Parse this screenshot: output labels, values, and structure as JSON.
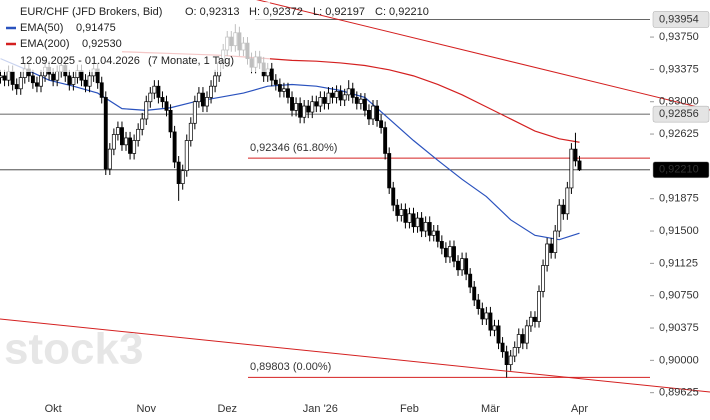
{
  "chart_data": {
    "type": "candlestick",
    "header": {
      "title": "EUR/CHF (JFD Brokers, Bid)",
      "ohlc": [
        "O: 0,92313",
        "H: 0,92372",
        "L: 0,92197",
        "C: 0,92210"
      ],
      "range": "12.09.2025 - 01.04.2026",
      "duration": "(7 Monate, 1 Tag)"
    },
    "watermark": "stock3",
    "categories": [
      null,
      null,
      null,
      null,
      null,
      null,
      null,
      null,
      null,
      null,
      null,
      null,
      null,
      "Okt",
      null,
      null,
      null,
      null,
      null,
      null,
      null,
      null,
      null,
      null,
      null,
      null,
      null,
      null,
      null,
      null,
      null,
      null,
      null,
      null,
      null,
      null,
      "Nov",
      null,
      null,
      null,
      null,
      null,
      null,
      null,
      null,
      null,
      null,
      null,
      null,
      null,
      null,
      null,
      null,
      null,
      null,
      null,
      "Dez",
      null,
      null,
      null,
      null,
      null,
      null,
      null,
      null,
      null,
      null,
      null,
      null,
      null,
      null,
      null,
      null,
      null,
      null,
      null,
      null,
      null,
      null,
      "Jan '26",
      null,
      null,
      null,
      null,
      null,
      null,
      null,
      null,
      null,
      null,
      null,
      null,
      null,
      null,
      null,
      null,
      null,
      null,
      null,
      null,
      null,
      "Feb",
      null,
      null,
      null,
      null,
      null,
      null,
      null,
      null,
      null,
      null,
      null,
      null,
      null,
      null,
      null,
      null,
      null,
      null,
      null,
      "Mär",
      null,
      null,
      null,
      null,
      null,
      null,
      null,
      null,
      null,
      null,
      null,
      null,
      null,
      null,
      null,
      null,
      null,
      null,
      null,
      null,
      null,
      "Apr"
    ],
    "open": [
      0.9328,
      0.933,
      0.9325,
      0.9335,
      0.932,
      0.9315,
      0.9328,
      0.9338,
      0.933,
      0.9322,
      0.9318,
      0.933,
      0.934,
      0.9332,
      0.9325,
      0.9335,
      0.9342,
      0.933,
      0.932,
      0.9328,
      0.9336,
      0.9325,
      0.9318,
      0.933,
      0.9338,
      0.9322,
      0.9305,
      0.9222,
      0.9245,
      0.9262,
      0.927,
      0.925,
      0.9258,
      0.924,
      0.9255,
      0.9268,
      0.928,
      0.93,
      0.931,
      0.9318,
      0.9305,
      0.93,
      0.929,
      0.9265,
      0.923,
      0.9205,
      0.922,
      0.9255,
      0.9275,
      0.93,
      0.931,
      0.9295,
      0.9305,
      0.9318,
      0.933,
      0.9345,
      0.936,
      0.9375,
      0.9365,
      0.938,
      0.936,
      0.9368,
      0.935,
      0.934,
      0.9352,
      0.9345,
      0.933,
      0.9338,
      0.9325,
      0.932,
      0.9312,
      0.9315,
      0.9305,
      0.929,
      0.9298,
      0.9282,
      0.9295,
      0.9288,
      0.93,
      0.9295,
      0.9305,
      0.9298,
      0.931,
      0.9305,
      0.9312,
      0.9302,
      0.9308,
      0.9315,
      0.9305,
      0.9298,
      0.9303,
      0.929,
      0.928,
      0.9295,
      0.9278,
      0.927,
      0.924,
      0.92,
      0.918,
      0.9168,
      0.9175,
      0.916,
      0.917,
      0.9155,
      0.9165,
      0.915,
      0.916,
      0.9145,
      0.915,
      0.9138,
      0.913,
      0.912,
      0.9132,
      0.9115,
      0.9105,
      0.9118,
      0.91,
      0.9085,
      0.907,
      0.906,
      0.9048,
      0.9055,
      0.9035,
      0.904,
      0.902,
      0.901,
      0.8995,
      0.9005,
      0.9015,
      0.903,
      0.902,
      0.904,
      0.905,
      0.9045,
      0.908,
      0.911,
      0.9135,
      0.9125,
      0.915,
      0.918,
      0.917,
      0.92,
      0.9245,
      0.92313
    ],
    "high": [
      0.9337,
      0.9337,
      0.9342,
      0.9342,
      0.9327,
      0.9335,
      0.9345,
      0.9345,
      0.9337,
      0.9329,
      0.9337,
      0.9347,
      0.9347,
      0.9339,
      0.9342,
      0.9349,
      0.9349,
      0.9337,
      0.9335,
      0.9343,
      0.9343,
      0.9332,
      0.9337,
      0.9345,
      0.9345,
      0.9329,
      0.9312,
      0.9252,
      0.9269,
      0.9277,
      0.9277,
      0.9265,
      0.9265,
      0.9262,
      0.9275,
      0.9287,
      0.9307,
      0.9317,
      0.9325,
      0.9325,
      0.9312,
      0.9307,
      0.9297,
      0.9272,
      0.9237,
      0.9227,
      0.9262,
      0.9282,
      0.9307,
      0.9317,
      0.9317,
      0.9312,
      0.9325,
      0.9337,
      0.9352,
      0.9367,
      0.9382,
      0.9382,
      0.939,
      0.9387,
      0.9375,
      0.9375,
      0.9357,
      0.9359,
      0.9359,
      0.9352,
      0.9345,
      0.9345,
      0.9332,
      0.9327,
      0.9322,
      0.9322,
      0.9312,
      0.9305,
      0.9305,
      0.9302,
      0.9302,
      0.9307,
      0.9307,
      0.9312,
      0.9312,
      0.9317,
      0.9317,
      0.9319,
      0.9319,
      0.9315,
      0.9325,
      0.9322,
      0.9312,
      0.931,
      0.931,
      0.9297,
      0.9302,
      0.9302,
      0.9285,
      0.9277,
      0.9247,
      0.9207,
      0.9187,
      0.9182,
      0.9182,
      0.9177,
      0.9177,
      0.9172,
      0.9172,
      0.9167,
      0.9167,
      0.9157,
      0.9157,
      0.9145,
      0.9137,
      0.9139,
      0.9139,
      0.9122,
      0.9125,
      0.9125,
      0.9107,
      0.9092,
      0.9077,
      0.9067,
      0.9062,
      0.9062,
      0.9047,
      0.9047,
      0.9027,
      0.9017,
      0.9012,
      0.9022,
      0.9037,
      0.9037,
      0.9047,
      0.9057,
      0.9057,
      0.9087,
      0.9117,
      0.9142,
      0.9142,
      0.9157,
      0.9187,
      0.9187,
      0.9207,
      0.9252,
      0.9264,
      0.92372
    ],
    "low": [
      0.9321,
      0.9318,
      0.9318,
      0.9313,
      0.9308,
      0.9308,
      0.9321,
      0.9323,
      0.9315,
      0.9311,
      0.9311,
      0.9323,
      0.9325,
      0.9318,
      0.9318,
      0.9328,
      0.9323,
      0.9313,
      0.9313,
      0.9321,
      0.9318,
      0.9311,
      0.9311,
      0.9323,
      0.9315,
      0.9298,
      0.9215,
      0.9215,
      0.9238,
      0.9255,
      0.9243,
      0.9243,
      0.9233,
      0.9233,
      0.9248,
      0.9261,
      0.9273,
      0.9293,
      0.9303,
      0.9298,
      0.9293,
      0.9283,
      0.9258,
      0.9223,
      0.9185,
      0.9198,
      0.9213,
      0.9248,
      0.9268,
      0.9293,
      0.9288,
      0.9288,
      0.9298,
      0.9311,
      0.9323,
      0.9338,
      0.9353,
      0.9358,
      0.9358,
      0.9353,
      0.9353,
      0.9343,
      0.9333,
      0.9333,
      0.9338,
      0.9323,
      0.9323,
      0.9318,
      0.9313,
      0.9305,
      0.9305,
      0.9298,
      0.9283,
      0.9283,
      0.9275,
      0.9275,
      0.9281,
      0.9281,
      0.9288,
      0.9288,
      0.9291,
      0.9291,
      0.9298,
      0.9298,
      0.9295,
      0.9295,
      0.9301,
      0.9298,
      0.9291,
      0.9291,
      0.9283,
      0.9273,
      0.9273,
      0.9271,
      0.9263,
      0.9233,
      0.9193,
      0.9173,
      0.9161,
      0.9161,
      0.9153,
      0.9153,
      0.9148,
      0.9148,
      0.9143,
      0.9143,
      0.9138,
      0.9138,
      0.9131,
      0.9123,
      0.9113,
      0.9113,
      0.9108,
      0.9098,
      0.9098,
      0.9093,
      0.9078,
      0.9063,
      0.9053,
      0.9041,
      0.9041,
      0.9028,
      0.9028,
      0.9013,
      0.9003,
      0.898,
      0.8988,
      0.8998,
      0.9008,
      0.9013,
      0.9013,
      0.9033,
      0.9038,
      0.9038,
      0.9073,
      0.9103,
      0.9118,
      0.9118,
      0.9143,
      0.9163,
      0.9163,
      0.9193,
      0.9225,
      0.92197
    ],
    "close": [
      0.933,
      0.9325,
      0.9335,
      0.932,
      0.9315,
      0.9328,
      0.9338,
      0.933,
      0.9322,
      0.9318,
      0.933,
      0.934,
      0.9332,
      0.9325,
      0.9335,
      0.9342,
      0.933,
      0.932,
      0.9328,
      0.9336,
      0.9325,
      0.9318,
      0.933,
      0.9338,
      0.9322,
      0.9305,
      0.9222,
      0.9245,
      0.9262,
      0.927,
      0.925,
      0.9258,
      0.924,
      0.9255,
      0.9268,
      0.928,
      0.93,
      0.931,
      0.9318,
      0.9305,
      0.93,
      0.929,
      0.9265,
      0.923,
      0.9205,
      0.922,
      0.9255,
      0.9275,
      0.93,
      0.931,
      0.9295,
      0.9305,
      0.9318,
      0.933,
      0.9345,
      0.936,
      0.9375,
      0.9365,
      0.938,
      0.936,
      0.9368,
      0.935,
      0.934,
      0.9352,
      0.9345,
      0.933,
      0.9338,
      0.9325,
      0.932,
      0.9312,
      0.9315,
      0.9305,
      0.929,
      0.9298,
      0.9282,
      0.9295,
      0.9288,
      0.93,
      0.9295,
      0.9305,
      0.9298,
      0.931,
      0.9305,
      0.9312,
      0.9302,
      0.9308,
      0.9315,
      0.9305,
      0.9298,
      0.9303,
      0.929,
      0.928,
      0.9295,
      0.9278,
      0.927,
      0.924,
      0.92,
      0.918,
      0.9168,
      0.9175,
      0.916,
      0.917,
      0.9155,
      0.9165,
      0.915,
      0.916,
      0.9145,
      0.915,
      0.9138,
      0.913,
      0.912,
      0.9132,
      0.9115,
      0.9105,
      0.9118,
      0.91,
      0.9085,
      0.907,
      0.906,
      0.9048,
      0.9055,
      0.9035,
      0.904,
      0.902,
      0.901,
      0.8995,
      0.9005,
      0.9015,
      0.903,
      0.902,
      0.904,
      0.905,
      0.9045,
      0.908,
      0.911,
      0.9135,
      0.9125,
      0.915,
      0.918,
      0.917,
      0.92,
      0.9245,
      0.92313,
      0.9221
    ],
    "up_color": "#ffffff",
    "down_color": "#000000",
    "series": [
      {
        "name": "EMA(50)",
        "value_label": "0,91475",
        "color": "#2a52be",
        "x": [
          0,
          6,
          12,
          18,
          24,
          30,
          36,
          42,
          48,
          54,
          60,
          66,
          72,
          78,
          84,
          90,
          96,
          102,
          108,
          114,
          120,
          126,
          132,
          138,
          143
        ],
        "values": [
          0.935,
          0.9338,
          0.9325,
          0.9318,
          0.931,
          0.9292,
          0.929,
          0.9293,
          0.93,
          0.9305,
          0.931,
          0.9318,
          0.932,
          0.9318,
          0.9313,
          0.9305,
          0.928,
          0.9255,
          0.9232,
          0.921,
          0.919,
          0.9163,
          0.9145,
          0.914,
          0.91475
        ]
      },
      {
        "name": "EMA(200)",
        "value_label": "0,92530",
        "color": "#d42020",
        "x": [
          30,
          36,
          42,
          48,
          54,
          60,
          66,
          72,
          78,
          84,
          90,
          96,
          102,
          108,
          114,
          120,
          126,
          132,
          138,
          143
        ],
        "values": [
          0.9358,
          0.9357,
          0.9356,
          0.9355,
          0.9354,
          0.9352,
          0.935,
          0.9348,
          0.9347,
          0.9345,
          0.9342,
          0.9337,
          0.933,
          0.932,
          0.9308,
          0.9294,
          0.928,
          0.9266,
          0.9257,
          0.9253
        ]
      }
    ],
    "levels": [
      {
        "value": 0.93954,
        "label": "0,93954",
        "box": "#e4e4e4",
        "text_color": "#222222"
      },
      {
        "value": 0.92856,
        "label": "0,92856",
        "box": "#e4e4e4",
        "text_color": "#222222"
      },
      {
        "value": 0.9221,
        "label": "0,92210",
        "box": "#000000",
        "text_color": "#ffffff"
      }
    ],
    "fib_levels": [
      {
        "value": 0.92346,
        "label": "0,92346 (61.80%)",
        "color": "#d42020"
      },
      {
        "value": 0.89803,
        "label": "0,89803 (0.00%)",
        "color": "#d42020"
      }
    ],
    "ylim": [
      0.8954,
      0.9418
    ],
    "yticks": [
      {
        "value": 0.9375,
        "label": "0,93750"
      },
      {
        "value": 0.93375,
        "label": "0,93375"
      },
      {
        "value": 0.93,
        "label": "0,93000"
      },
      {
        "value": 0.92625,
        "label": "0,92625"
      },
      {
        "value": 0.91875,
        "label": "0,91875"
      },
      {
        "value": 0.915,
        "label": "0,91500"
      },
      {
        "value": 0.91125,
        "label": "0,91125"
      },
      {
        "value": 0.9075,
        "label": "0,90750"
      },
      {
        "value": 0.90375,
        "label": "0,90375"
      },
      {
        "value": 0.9,
        "label": "0,90000"
      },
      {
        "value": 0.89625,
        "label": "0,89625"
      }
    ]
  }
}
